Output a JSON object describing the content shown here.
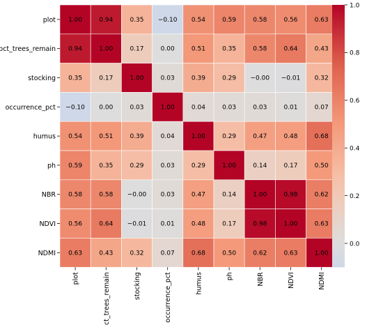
{
  "chart_data": {
    "type": "heatmap",
    "title": "",
    "xlabel": "",
    "ylabel": "",
    "x_categories": [
      "plot",
      "pct_trees_remain",
      "stocking",
      "occurrence_pct",
      "humus",
      "ph",
      "NBR",
      "NDVI",
      "NDMI"
    ],
    "y_categories": [
      "plot",
      "pct_trees_remain",
      "stocking",
      "occurrence_pct",
      "humus",
      "ph",
      "NBR",
      "NDVI",
      "NDMI"
    ],
    "values": [
      [
        1.0,
        0.94,
        0.35,
        -0.1,
        0.54,
        0.59,
        0.58,
        0.56,
        0.63
      ],
      [
        0.94,
        1.0,
        0.17,
        0.0,
        0.51,
        0.35,
        0.58,
        0.64,
        0.43
      ],
      [
        0.35,
        0.17,
        1.0,
        0.03,
        0.39,
        0.29,
        -0.0,
        -0.01,
        0.32
      ],
      [
        -0.1,
        0.0,
        0.03,
        1.0,
        0.04,
        0.03,
        0.03,
        0.01,
        0.07
      ],
      [
        0.54,
        0.51,
        0.39,
        0.04,
        1.0,
        0.29,
        0.47,
        0.48,
        0.68
      ],
      [
        0.59,
        0.35,
        0.29,
        0.03,
        0.29,
        1.0,
        0.14,
        0.17,
        0.5
      ],
      [
        0.58,
        0.58,
        -0.0,
        0.03,
        0.47,
        0.14,
        1.0,
        0.98,
        0.62
      ],
      [
        0.56,
        0.64,
        -0.01,
        0.01,
        0.48,
        0.17,
        0.98,
        1.0,
        0.63
      ],
      [
        0.63,
        0.43,
        0.32,
        0.07,
        0.68,
        0.5,
        0.62,
        0.63,
        1.0
      ]
    ],
    "annot_format": "0.00",
    "colormap": "coolwarm",
    "vmin": -0.1,
    "vmax": 1.0,
    "center": 0,
    "colorbar": {
      "ticks": [
        0.0,
        0.2,
        0.4,
        0.6,
        0.8,
        1.0
      ],
      "tick_labels": [
        "0.0",
        "0.2",
        "0.4",
        "0.6",
        "0.8",
        "1.0"
      ]
    },
    "grid_line_color": "#ffffff"
  }
}
